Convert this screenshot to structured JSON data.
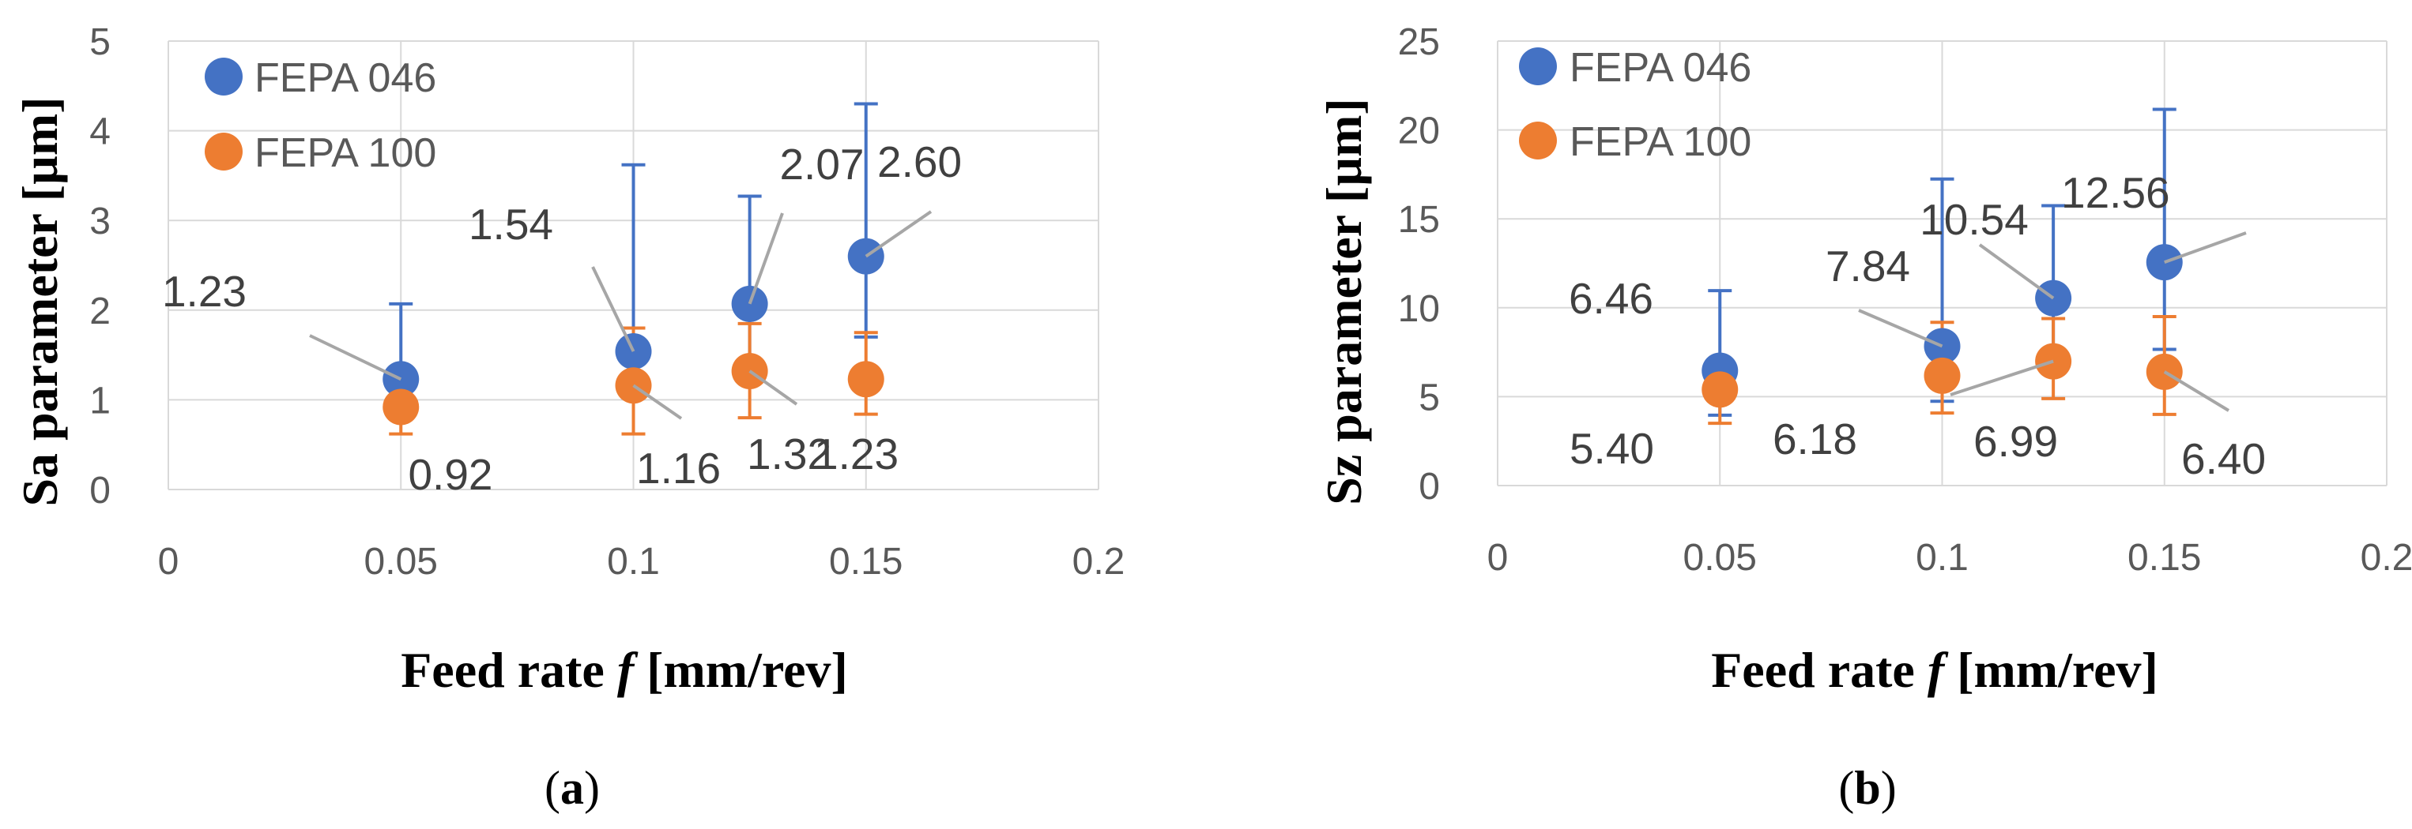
{
  "colors": {
    "fepa046": "#4472c4",
    "fepa100": "#ed7d31",
    "gridline": "#d9d9d9",
    "leader": "#a6a6a6",
    "tick_text": "#595959",
    "label_text": "#404040"
  },
  "chart_data": [
    {
      "type": "scatter",
      "panel_label": {
        "open": "(",
        "letter": "a",
        "close": ")"
      },
      "xlabel": {
        "prefix": "Feed rate ",
        "italic": "f",
        "suffix": " [mm/rev]"
      },
      "ylabel": "Sa parameter [µm]",
      "xlim": [
        0,
        0.2
      ],
      "ylim": [
        0,
        5
      ],
      "xticks": [
        "0",
        "0.05",
        "0.1",
        "0.15",
        "0.2"
      ],
      "yticks": [
        "0",
        "1",
        "2",
        "3",
        "4",
        "5"
      ],
      "grid": true,
      "legend_position": "top-left",
      "series": [
        {
          "name": "FEPA 046",
          "color": "#4472c4",
          "x": [
            0.05,
            0.1,
            0.125,
            0.15
          ],
          "y": [
            1.23,
            1.54,
            2.07,
            2.6
          ],
          "error_low": [
            0.32,
            0.52,
            0.87,
            0.9
          ],
          "error_high": [
            0.84,
            2.08,
            1.2,
            1.7
          ],
          "labels": [
            "1.23",
            "1.54",
            "2.07",
            "2.60"
          ]
        },
        {
          "name": "FEPA 100",
          "color": "#ed7d31",
          "x": [
            0.05,
            0.1,
            0.125,
            0.15
          ],
          "y": [
            0.92,
            1.16,
            1.32,
            1.23
          ],
          "error_low": [
            0.3,
            0.54,
            0.52,
            0.39
          ],
          "error_high": [
            0.3,
            0.64,
            0.53,
            0.52
          ],
          "labels": [
            "0.92",
            "1.16",
            "1.32",
            "1.23"
          ]
        }
      ]
    },
    {
      "type": "scatter",
      "panel_label": {
        "open": "(",
        "letter": "b",
        "close": ")"
      },
      "xlabel": {
        "prefix": "Feed rate ",
        "italic": "f",
        "suffix": " [mm/rev]"
      },
      "ylabel": "Sz parameter [µm]",
      "xlim": [
        0,
        0.2
      ],
      "ylim": [
        0,
        25
      ],
      "xticks": [
        "0",
        "0.05",
        "0.1",
        "0.15",
        "0.2"
      ],
      "yticks": [
        "0",
        "5",
        "10",
        "15",
        "20",
        "25"
      ],
      "grid": true,
      "legend_position": "top-left",
      "series": [
        {
          "name": "FEPA 046",
          "color": "#4472c4",
          "x": [
            0.05,
            0.1,
            0.125,
            0.15
          ],
          "y": [
            6.46,
            7.84,
            10.54,
            12.56
          ],
          "error_low": [
            2.5,
            3.1,
            3.0,
            4.9
          ],
          "error_high": [
            4.5,
            9.4,
            5.2,
            8.6
          ],
          "labels": [
            "6.46",
            "7.84",
            "10.54",
            "12.56"
          ]
        },
        {
          "name": "FEPA 100",
          "color": "#ed7d31",
          "x": [
            0.05,
            0.1,
            0.125,
            0.15
          ],
          "y": [
            5.4,
            6.18,
            6.99,
            6.4
          ],
          "error_low": [
            1.9,
            2.1,
            2.1,
            2.4
          ],
          "error_high": [
            0.0,
            3.0,
            2.4,
            3.1
          ],
          "labels": [
            "5.40",
            "6.18",
            "6.99",
            "6.40"
          ]
        }
      ]
    }
  ]
}
